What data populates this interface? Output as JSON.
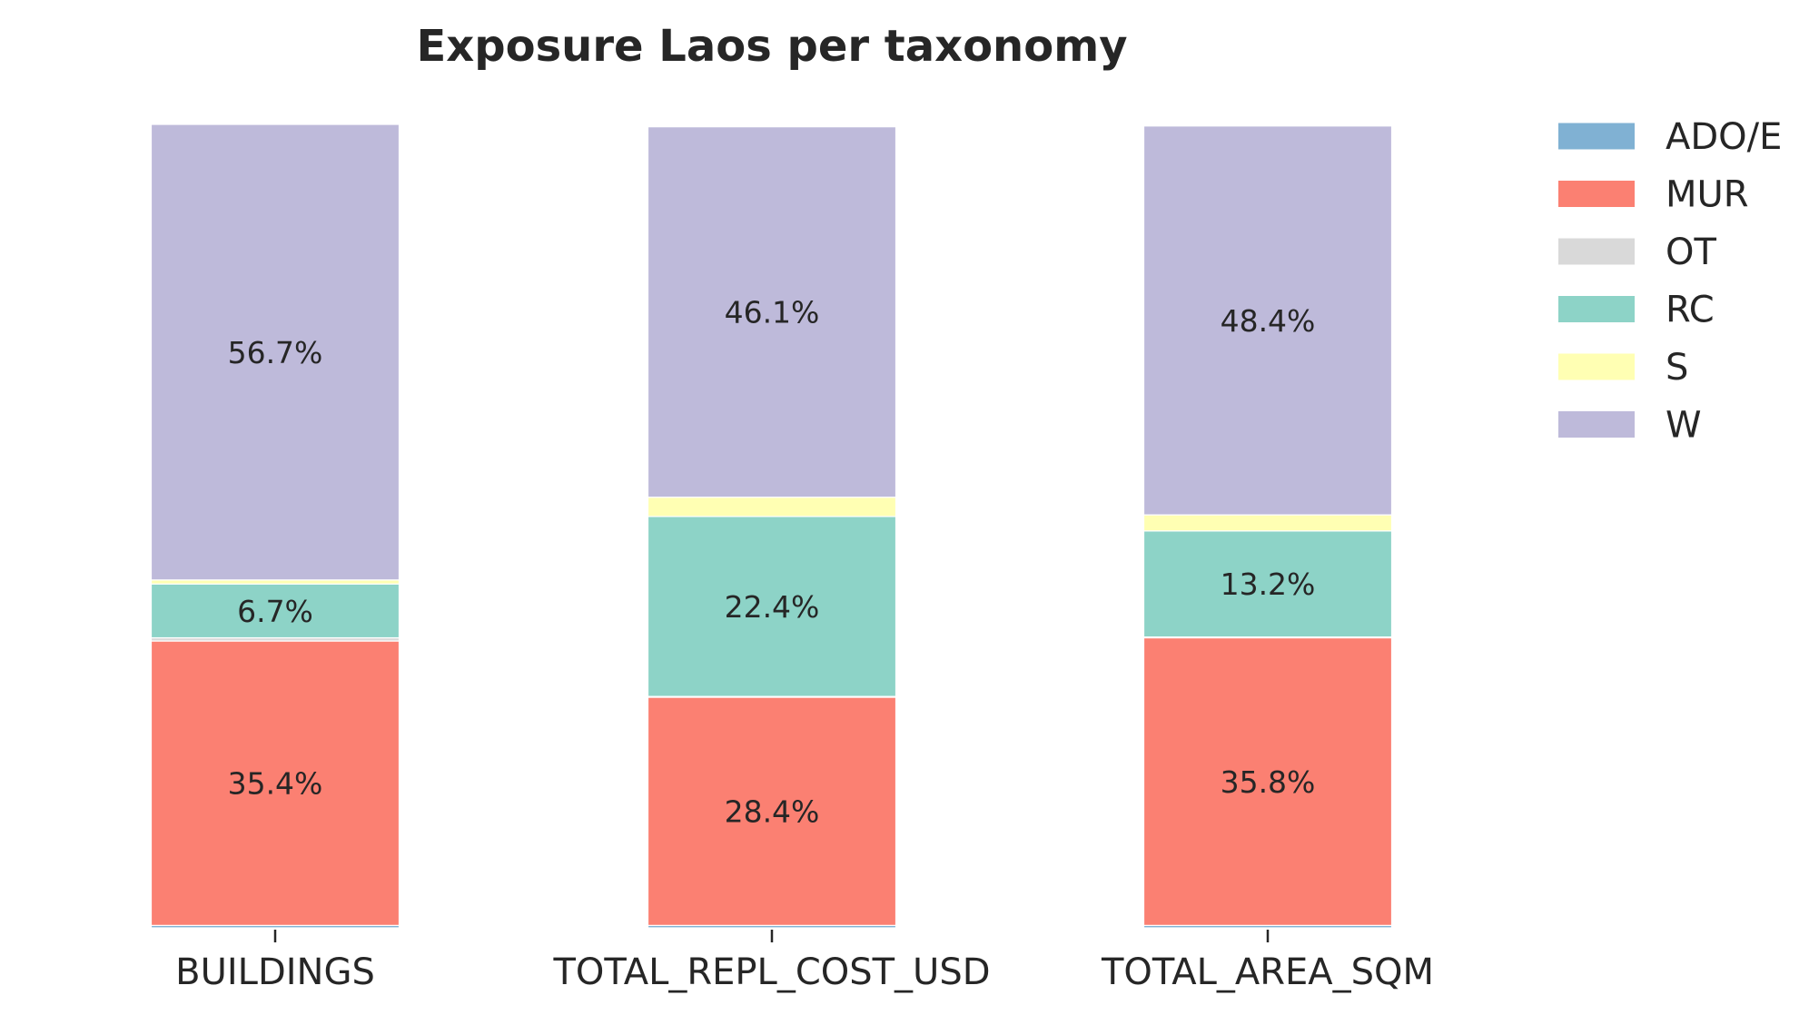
{
  "chart_data": {
    "type": "bar",
    "stacked": true,
    "title": "Exposure Laos per taxonomy",
    "xlabel": "",
    "ylabel": "",
    "categories": [
      "BUILDINGS",
      "TOTAL_REPL_COST_USD",
      "TOTAL_AREA_SQM"
    ],
    "ylim": [
      0,
      100
    ],
    "grid": false,
    "legend_position": "top-right outside",
    "series": [
      {
        "name": "ADO/E",
        "color": "#80b1d3",
        "values": [
          0.3,
          0.3,
          0.3
        ],
        "labels": [
          "",
          "",
          ""
        ]
      },
      {
        "name": "MUR",
        "color": "#fb8072",
        "values": [
          35.4,
          28.4,
          35.8
        ],
        "labels": [
          "35.4%",
          "28.4%",
          "35.8%"
        ]
      },
      {
        "name": "OT",
        "color": "#d9d9d9",
        "values": [
          0.4,
          0.1,
          0.1
        ],
        "labels": [
          "",
          "",
          ""
        ]
      },
      {
        "name": "RC",
        "color": "#8dd3c7",
        "values": [
          6.7,
          22.4,
          13.2
        ],
        "labels": [
          "6.7%",
          "22.4%",
          "13.2%"
        ]
      },
      {
        "name": "S",
        "color": "#ffffb3",
        "values": [
          0.5,
          2.4,
          2.0
        ],
        "labels": [
          "",
          "",
          ""
        ]
      },
      {
        "name": "W",
        "color": "#bebada",
        "values": [
          56.7,
          46.1,
          48.4
        ],
        "labels": [
          "56.7%",
          "46.1%",
          "48.4%"
        ]
      }
    ]
  }
}
